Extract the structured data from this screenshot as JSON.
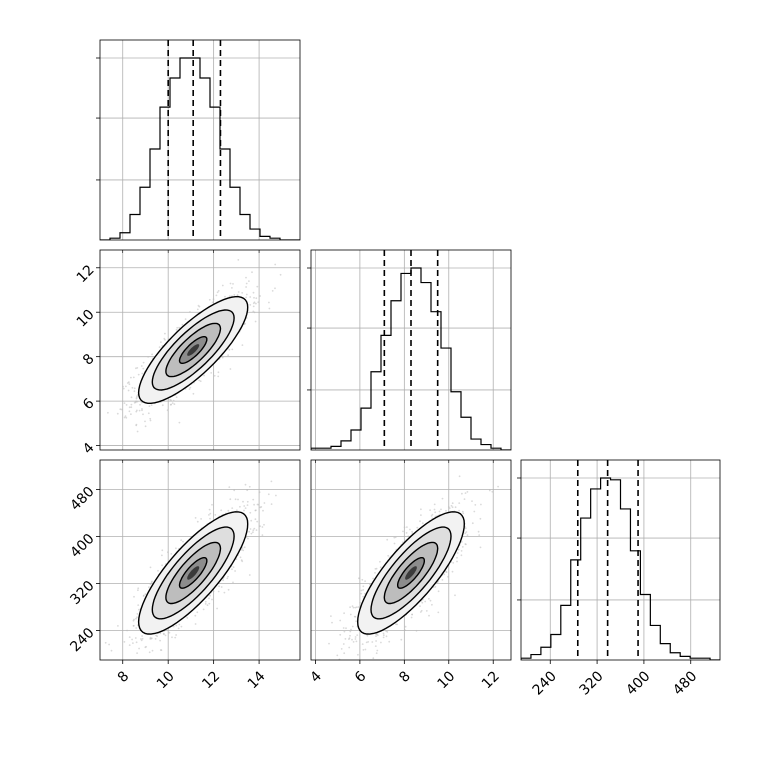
{
  "chart_data": {
    "type": "corner",
    "title": "",
    "variables": [
      {
        "range": [
          7,
          15.8
        ],
        "ticks": [
          "8",
          "10",
          "12",
          "14"
        ],
        "tick_values": [
          8,
          10,
          12,
          14
        ],
        "quantiles": [
          10.0,
          11.1,
          12.3
        ]
      },
      {
        "range": [
          3.8,
          12.8
        ],
        "ticks": [
          "4",
          "6",
          "8",
          "10",
          "12"
        ],
        "tick_values": [
          4,
          6,
          8,
          10,
          12
        ],
        "quantiles": [
          7.1,
          8.3,
          9.5
        ]
      },
      {
        "range": [
          190,
          530
        ],
        "ticks": [
          "240",
          "320",
          "400",
          "480"
        ],
        "tick_values": [
          240,
          320,
          400,
          480
        ],
        "quantiles": [
          287,
          338,
          390
        ]
      }
    ],
    "histograms": [
      {
        "edges_start": 7,
        "bin_width": 0.44,
        "counts": [
          0,
          1,
          4,
          14,
          29,
          50,
          73,
          89,
          100,
          100,
          89,
          73,
          50,
          29,
          14,
          6,
          2,
          1,
          0,
          0
        ]
      },
      {
        "edges_start": 3.8,
        "bin_width": 0.45,
        "counts": [
          1,
          1,
          2,
          5,
          11,
          23,
          43,
          63,
          82,
          97,
          100,
          92,
          76,
          56,
          32,
          18,
          6,
          3,
          1,
          0
        ]
      },
      {
        "edges_start": 190,
        "bin_width": 17,
        "counts": [
          1,
          3,
          7,
          14,
          30,
          55,
          78,
          94,
          100,
          99,
          83,
          60,
          36,
          19,
          9,
          4,
          2,
          1,
          1,
          0
        ]
      }
    ],
    "pairs": [
      {
        "x": 0,
        "y": 1,
        "mean": [
          11.1,
          8.3
        ],
        "sd": [
          1.2,
          1.2
        ],
        "corr": 0.8
      },
      {
        "x": 0,
        "y": 2,
        "mean": [
          11.1,
          338
        ],
        "sd": [
          1.2,
          52
        ],
        "corr": 0.8
      },
      {
        "x": 1,
        "y": 2,
        "mean": [
          8.3,
          338
        ],
        "sd": [
          1.2,
          52
        ],
        "corr": 0.8
      }
    ],
    "contour_sigmas": [
      0.5,
      1.0,
      1.5,
      2.0
    ],
    "colors": {
      "hist": "#000000",
      "contour": "#000000",
      "scatter": "#bbbbbb",
      "grid": "#b0b0b0"
    },
    "grid": true
  }
}
